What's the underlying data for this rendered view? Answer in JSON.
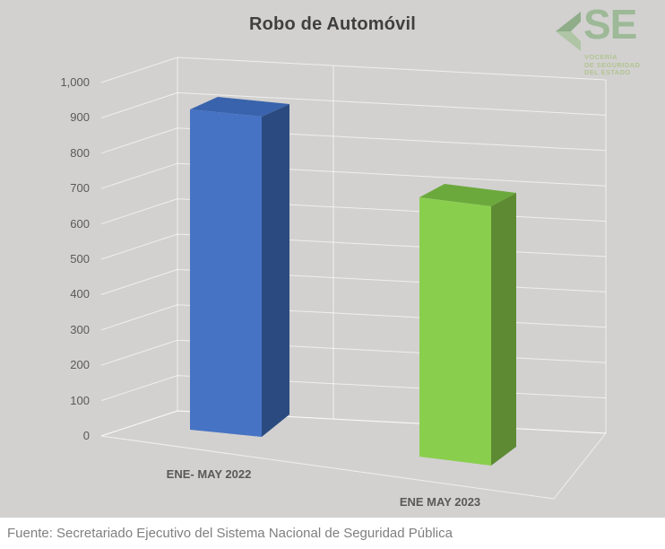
{
  "page": {
    "background": "#D2D1D0"
  },
  "chart_data": {
    "type": "bar",
    "effect": "3d",
    "title": "Robo de Automóvil",
    "categories": [
      "ENE- MAY 2022",
      "ENE MAY 2023"
    ],
    "values": [
      910,
      660
    ],
    "series": [
      {
        "name": "Robo de Automóvil",
        "values": [
          910,
          660
        ]
      }
    ],
    "xlabel": "",
    "ylabel": "",
    "ylim": [
      0,
      1000
    ],
    "ytick_step": 100,
    "ytick_labels": [
      "0",
      "100",
      "200",
      "300",
      "400",
      "500",
      "600",
      "700",
      "800",
      "900",
      "1,000"
    ],
    "grid": true,
    "legend": false,
    "bar_colors": [
      {
        "front": "#4673C4",
        "side": "#2B4B80",
        "top": "#3963AC"
      },
      {
        "front": "#8ACE4E",
        "side": "#5E8A33",
        "top": "#6CA93C"
      }
    ]
  },
  "logo": {
    "monogram": "SE",
    "line1": "VOCERÍA",
    "line2": "DE SEGURIDAD",
    "line3": "DEL ESTADO",
    "text_color": "#9DB997",
    "chevron_dark": "#8FAD89",
    "chevron_light": "#AFC5A5",
    "small_text_color": "#B2C492"
  },
  "source": {
    "text": "Fuente: Secretariado Ejecutivo del Sistema Nacional de Seguridad Pública"
  }
}
